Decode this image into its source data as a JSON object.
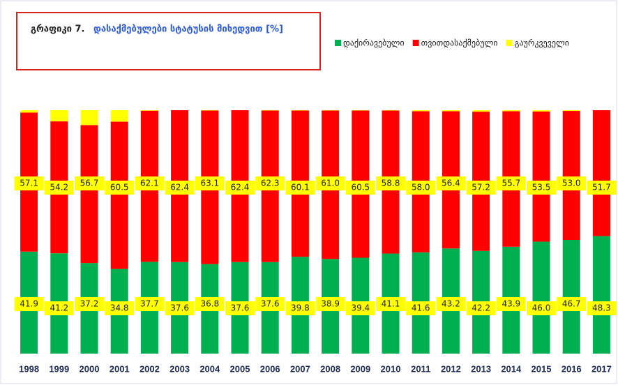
{
  "chart_data": {
    "type": "stacked_bar",
    "title": "გრაფიკი 7.",
    "subtitle": "დასაქმებულები სტატუსის მიხედვით [%]",
    "categories": [
      "1998",
      "1999",
      "2000",
      "2001",
      "2002",
      "2003",
      "2004",
      "2005",
      "2006",
      "2007",
      "2008",
      "2009",
      "2010",
      "2011",
      "2012",
      "2013",
      "2014",
      "2015",
      "2016",
      "2017"
    ],
    "series": [
      {
        "name": "დაქირავებული",
        "color": "#00b050",
        "values": [
          41.9,
          41.2,
          37.2,
          34.8,
          37.7,
          37.6,
          36.8,
          37.6,
          37.6,
          39.8,
          38.9,
          39.4,
          41.1,
          41.6,
          43.2,
          42.2,
          43.9,
          46.0,
          46.7,
          48.3
        ],
        "value_labels": [
          "41.9",
          "41.2",
          "37.2",
          "34.8",
          "37.7",
          "37.6",
          "36.8",
          "37.6",
          "37.6",
          "39.8",
          "38.9",
          "39.4",
          "41.1",
          "41.6",
          "43.2",
          "42.2",
          "43.9",
          "46.0",
          "46.7",
          "48.3"
        ]
      },
      {
        "name": "თვითდასაქმებული",
        "color": "#ff0000",
        "values": [
          57.1,
          54.2,
          56.7,
          60.5,
          62.1,
          62.4,
          63.1,
          62.4,
          62.3,
          60.1,
          61.0,
          60.5,
          58.8,
          58.0,
          56.4,
          57.2,
          55.7,
          53.5,
          53.0,
          51.7
        ],
        "value_labels": [
          "57.1",
          "54.2",
          "56.7",
          "60.5",
          "62.1",
          "62.4",
          "63.1",
          "62.4",
          "62.3",
          "60.1",
          "61.0",
          "60.5",
          "58.8",
          "58.0",
          "56.4",
          "57.2",
          "55.7",
          "53.5",
          "53.0",
          "51.7"
        ]
      },
      {
        "name": "გაურკვეველი",
        "color": "#ffff00",
        "values": [
          1.0,
          4.6,
          6.1,
          4.7,
          0.2,
          0.0,
          0.1,
          0.0,
          0.1,
          0.1,
          0.1,
          0.1,
          0.1,
          0.4,
          0.4,
          0.6,
          0.4,
          0.5,
          0.3,
          0.0
        ]
      }
    ],
    "ylim": [
      0,
      100
    ],
    "legend": "top-right"
  }
}
